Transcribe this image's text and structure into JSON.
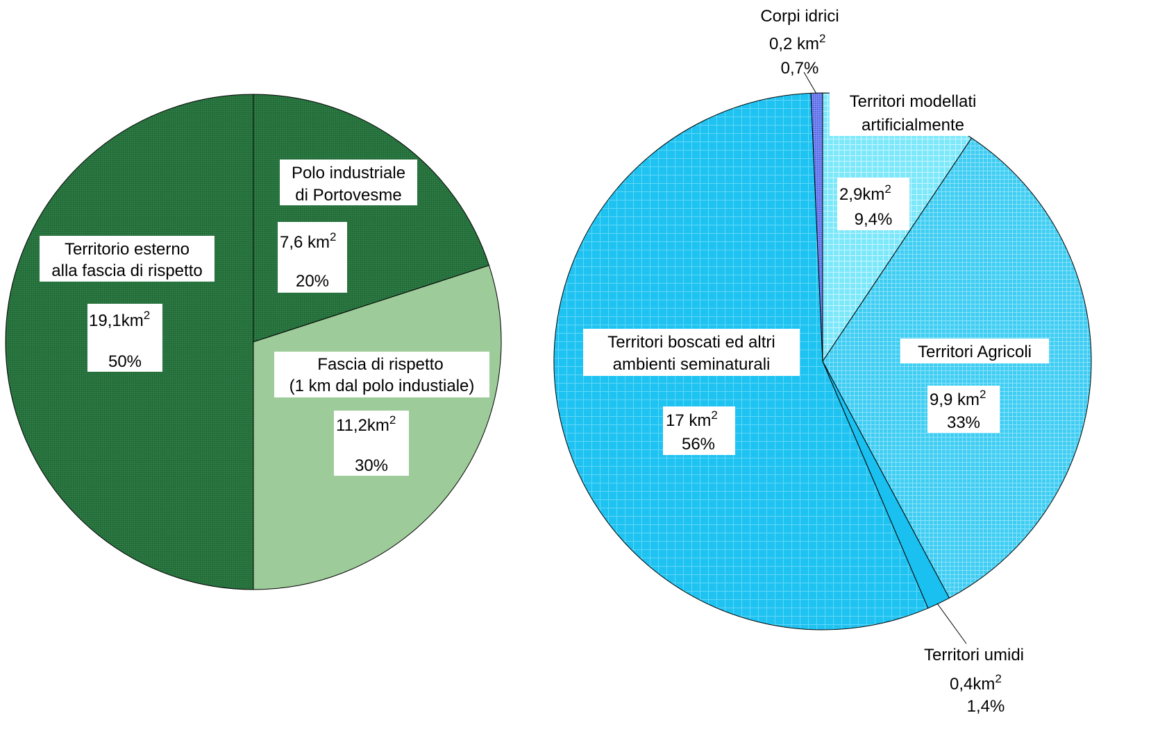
{
  "chart_data": [
    {
      "type": "pie",
      "title": "",
      "slices": [
        {
          "name": "Polo industriale di Portovesme",
          "label_lines": [
            "Polo industriale",
            "di Portovesme"
          ],
          "value": 7.6,
          "value_label": "7,6 km",
          "percent": 20,
          "percent_label": "20%",
          "color": "#2e7d46",
          "pattern": "fine-grid-dark"
        },
        {
          "name": "Fascia di rispetto (1 km dal polo industiale)",
          "label_lines": [
            "Fascia di rispetto",
            "(1 km dal polo industiale)"
          ],
          "value": 11.2,
          "value_label": "11,2km",
          "percent": 30,
          "percent_label": "30%",
          "color": "#9dcc9a",
          "pattern": "none"
        },
        {
          "name": "Territorio esterno alla fascia di rispetto",
          "label_lines": [
            "Territorio esterno",
            "alla fascia di rispetto"
          ],
          "value": 19.1,
          "value_label": "19,1km",
          "percent": 50,
          "percent_label": "50%",
          "color": "#2e7d46",
          "pattern": "fine-grid-dark"
        }
      ]
    },
    {
      "type": "pie",
      "title": "",
      "slices": [
        {
          "name": "Territori modellati artificialmente",
          "label_lines": [
            "Territori modellati",
            "artificialmente"
          ],
          "value": 2.9,
          "value_label": "2,9km",
          "percent": 9.4,
          "percent_label": "9,4%",
          "color": "#7ee8fb",
          "pattern": "fine-grid-light"
        },
        {
          "name": "Territori Agricoli",
          "label_lines": [
            "Territori Agricoli"
          ],
          "value": 9.9,
          "value_label": "9,9 km",
          "percent": 33,
          "percent_label": "33%",
          "color": "#3ecdf3",
          "pattern": "dense-grid"
        },
        {
          "name": "Territori umidi",
          "label_lines": [
            "Territori umidi"
          ],
          "value": 0.4,
          "value_label": "0,4km",
          "percent": 1.4,
          "percent_label": "1,4%",
          "color": "#19c0f0",
          "pattern": "none"
        },
        {
          "name": "Territori boscati ed altri ambienti seminaturali",
          "label_lines": [
            "Territori boscati ed altri",
            "ambienti seminaturali"
          ],
          "value": 17,
          "value_label": "17 km",
          "percent": 56,
          "percent_label": "56%",
          "color": "#1ec3f2",
          "pattern": "sparse-grid"
        },
        {
          "name": "Corpi idrici",
          "label_lines": [
            "Corpi idrici"
          ],
          "value": 0.2,
          "value_label": "0,2 km",
          "percent": 0.7,
          "percent_label": "0,7%",
          "color": "#5566e8",
          "pattern": "fine-grid-dark"
        }
      ]
    }
  ]
}
